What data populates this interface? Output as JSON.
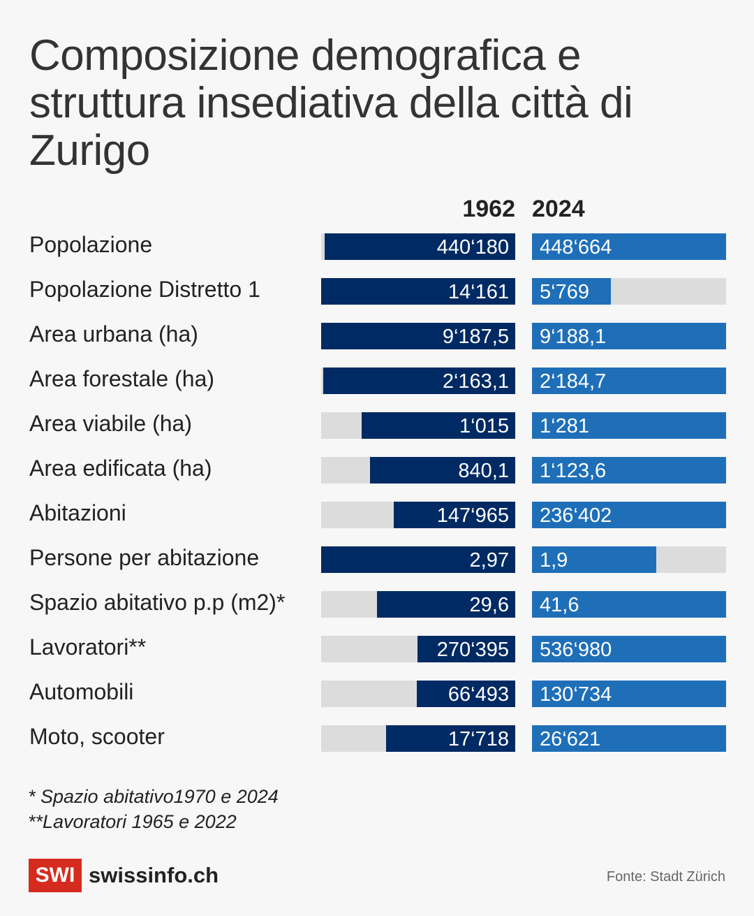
{
  "title": "Composizione demografica e struttura insediativa della città di Zurigo",
  "colors": {
    "bar_1962": "#002a63",
    "bar_2024": "#1f6fb8",
    "bar_background": "#dcdcdc",
    "brand_red": "#d52b1e"
  },
  "chart_data": {
    "type": "bar",
    "layout": "paired horizontal bars, 1962 bars right-aligned, 2024 bars left-aligned, each row scaled to its larger value",
    "columns": [
      "1962",
      "2024"
    ],
    "series": [
      {
        "name": "1962",
        "values": [
          440180,
          14161,
          9187.5,
          2163.1,
          1015,
          840.1,
          147965,
          2.97,
          29.6,
          270395,
          66493,
          17718
        ],
        "labels": [
          "440‘180",
          "14‘161",
          "9‘187,5",
          "2‘163,1",
          "1‘015",
          "840,1",
          "147‘965",
          "2,97",
          "29,6",
          "270‘395",
          "66‘493",
          "17‘718"
        ]
      },
      {
        "name": "2024",
        "values": [
          448664,
          5769,
          9188.1,
          2184.7,
          1281,
          1123.6,
          236402,
          1.9,
          41.6,
          536980,
          130734,
          26621
        ],
        "labels": [
          "448‘664",
          "5‘769",
          "9‘188,1",
          "2‘184,7",
          "1‘281",
          "1‘123,6",
          "236‘402",
          "1,9",
          "41,6",
          "536‘980",
          "130‘734",
          "26‘621"
        ]
      }
    ],
    "categories": [
      "Popolazione",
      "Popolazione Distretto 1",
      "Area urbana (ha)",
      "Area forestale (ha)",
      "Area viabile (ha)",
      "Area edificata (ha)",
      "Abitazioni",
      "Persone per abitazione",
      "Spazio abitativo p.p (m2)*",
      "Lavoratori**",
      "Automobili",
      "Moto, scooter"
    ]
  },
  "footnotes": {
    "note1": "* Spazio abitativo1970 e 2024",
    "note2": "**Lavoratori 1965 e 2022"
  },
  "brand": {
    "logo_box": "SWI",
    "logo_text": "swissinfo.ch"
  },
  "source": "Fonte: Stadt Zürich"
}
